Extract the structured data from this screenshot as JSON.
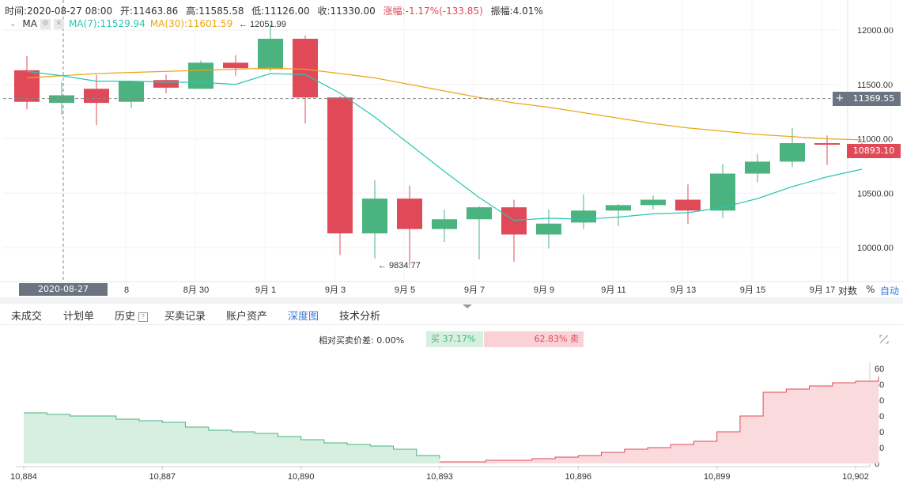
{
  "info": {
    "time": "时间:2020-08-27 08:00",
    "open": "开:11463.86",
    "high": "高:11585.58",
    "low": "低:11126.00",
    "close": "收:11330.00",
    "change": "涨幅:-1.17%(-133.85)",
    "amplitude": "振幅:4.01%"
  },
  "ma": {
    "label": "MA",
    "ma7_label": "MA(7):11529.94",
    "ma30_label": "MA(30):11601.59",
    "ma7_color": "#2bc6b0",
    "ma30_color": "#e8a714"
  },
  "colors": {
    "up": "#4bb37f",
    "down": "#e04a58"
  },
  "crosshair": {
    "price": "11369.55",
    "time": "2020-08-27 08:00:00",
    "plus": "+"
  },
  "last_price": "10893.10",
  "annotations": {
    "high": "← 12051.99",
    "low": "← 9834.77"
  },
  "axis_options": {
    "log": "对数",
    "percent": "%",
    "auto": "自动"
  },
  "chart_data": [
    {
      "type": "candlestick",
      "y_ticks": [
        12000,
        11500,
        11000,
        10500,
        10000
      ],
      "y_tick_labels": [
        "12000.00",
        "11500.00",
        "11000.00",
        "10500.00",
        "10000.00"
      ],
      "x_tick_labels": [
        "8",
        "8月 30",
        "9月 1",
        "9月 3",
        "9月 5",
        "9月 7",
        "9月 9",
        "9月 11",
        "9月 13",
        "9月 15",
        "9月 17"
      ],
      "candles": [
        {
          "o": 11630,
          "h": 11760,
          "l": 11270,
          "c": 11340
        },
        {
          "o": 11330,
          "h": 11520,
          "l": 11220,
          "c": 11400
        },
        {
          "o": 11460,
          "h": 11586,
          "l": 11126,
          "c": 11330
        },
        {
          "o": 11340,
          "h": 11520,
          "l": 11280,
          "c": 11530
        },
        {
          "o": 11540,
          "h": 11590,
          "l": 11420,
          "c": 11470
        },
        {
          "o": 11460,
          "h": 11720,
          "l": 11460,
          "c": 11700
        },
        {
          "o": 11700,
          "h": 11770,
          "l": 11580,
          "c": 11650
        },
        {
          "o": 11640,
          "h": 12052,
          "l": 11620,
          "c": 11920
        },
        {
          "o": 11920,
          "h": 11950,
          "l": 11140,
          "c": 11380
        },
        {
          "o": 11380,
          "h": 11390,
          "l": 9930,
          "c": 10130
        },
        {
          "o": 10130,
          "h": 10620,
          "l": 9900,
          "c": 10450
        },
        {
          "o": 10450,
          "h": 10570,
          "l": 9835,
          "c": 10170
        },
        {
          "o": 10170,
          "h": 10350,
          "l": 10050,
          "c": 10260
        },
        {
          "o": 10260,
          "h": 10380,
          "l": 9890,
          "c": 10370
        },
        {
          "o": 10370,
          "h": 10440,
          "l": 9870,
          "c": 10120
        },
        {
          "o": 10120,
          "h": 10350,
          "l": 9990,
          "c": 10220
        },
        {
          "o": 10230,
          "h": 10490,
          "l": 10170,
          "c": 10340
        },
        {
          "o": 10340,
          "h": 10400,
          "l": 10200,
          "c": 10390
        },
        {
          "o": 10390,
          "h": 10480,
          "l": 10350,
          "c": 10440
        },
        {
          "o": 10440,
          "h": 10580,
          "l": 10220,
          "c": 10340
        },
        {
          "o": 10340,
          "h": 10770,
          "l": 10270,
          "c": 10680
        },
        {
          "o": 10680,
          "h": 10860,
          "l": 10600,
          "c": 10790
        },
        {
          "o": 10790,
          "h": 11100,
          "l": 10740,
          "c": 10960
        },
        {
          "o": 10960,
          "h": 11030,
          "l": 10760,
          "c": 10950
        },
        {
          "o": 10950,
          "h": 10960,
          "l": 10880,
          "c": 10893
        }
      ],
      "ma7": [
        11620,
        11580,
        11530,
        11530,
        11520,
        11520,
        11500,
        11600,
        11590,
        11420,
        11200,
        10950,
        10700,
        10460,
        10250,
        10270,
        10260,
        10280,
        10310,
        10320,
        10370,
        10450,
        10560,
        10650,
        10720
      ],
      "ma30": [
        11560,
        11580,
        11600,
        11610,
        11620,
        11630,
        11640,
        11650,
        11640,
        11600,
        11560,
        11500,
        11440,
        11380,
        11330,
        11290,
        11240,
        11190,
        11140,
        11100,
        11070,
        11040,
        11020,
        11000,
        10990
      ]
    },
    {
      "type": "area",
      "y_ticks": [
        0,
        10,
        20,
        30,
        40,
        50,
        60
      ],
      "y_tick_labels": [
        "0",
        "10",
        "20",
        "30",
        "40",
        "50",
        "60"
      ],
      "x_tick_labels": [
        "10,884",
        "10,887",
        "10,890",
        "10,893",
        "10,896",
        "10,899",
        "10,902"
      ],
      "series": [
        {
          "name": "买",
          "x": [
            10884.0,
            10884.5,
            10885.0,
            10885.5,
            10886.0,
            10886.5,
            10887.0,
            10887.5,
            10888.0,
            10888.5,
            10889.0,
            10889.5,
            10890.0,
            10890.5,
            10891.0,
            10891.5,
            10892.0,
            10892.5,
            10893.0
          ],
          "y": [
            32,
            31,
            30,
            30,
            28,
            27,
            26,
            23,
            21,
            20,
            19,
            17,
            15,
            13,
            12,
            11,
            9,
            5,
            3
          ]
        },
        {
          "name": "卖",
          "x": [
            10893.0,
            10893.5,
            10894.0,
            10894.5,
            10895.0,
            10895.5,
            10896.0,
            10896.5,
            10897.0,
            10897.5,
            10898.0,
            10898.5,
            10899.0,
            10899.5,
            10900.0,
            10900.5,
            10901.0,
            10901.5,
            10902.0,
            10902.5
          ],
          "y": [
            1,
            1,
            2,
            2,
            3,
            4,
            5,
            7,
            9,
            10,
            12,
            14,
            20,
            30,
            45,
            47,
            49,
            51,
            52,
            55
          ]
        }
      ]
    }
  ],
  "tabs": [
    "未成交",
    "计划单",
    "历史",
    "买卖记录",
    "账户资产",
    "深度图",
    "技术分析"
  ],
  "depth": {
    "diff_label": "相对买卖价差:",
    "diff_value": "0.00%",
    "buy": "买 37.17%",
    "sell": "62.83% 卖",
    "buy_fraction": 0.3717
  }
}
